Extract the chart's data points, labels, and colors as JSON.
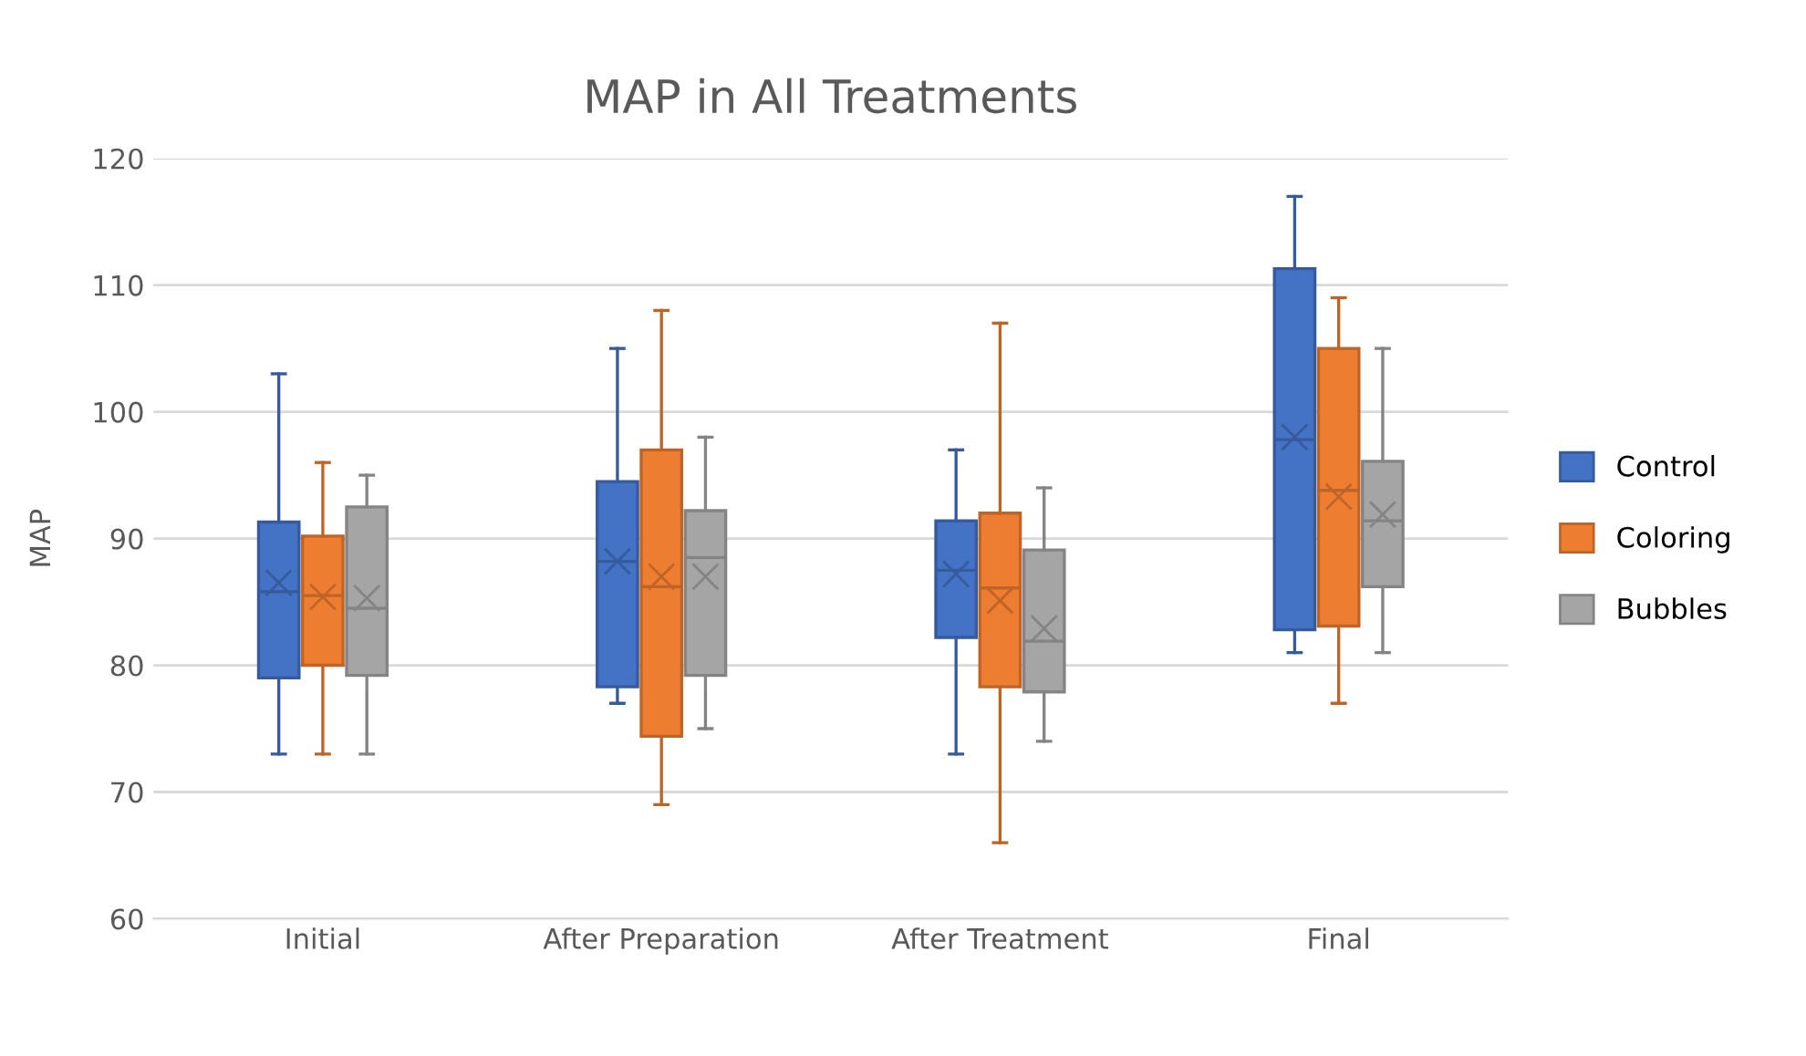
{
  "chart_data": {
    "type": "box",
    "title": "MAP in All Treatments",
    "ylabel": "MAP",
    "categories": [
      "Initial",
      "After Preparation",
      "After Treatment",
      "Final"
    ],
    "ylim": [
      60,
      120
    ],
    "yticks": [
      60,
      70,
      80,
      90,
      100,
      110,
      120
    ],
    "grid": "y",
    "legend": "right",
    "marker": "cross",
    "series": [
      {
        "name": "Control",
        "color": "#4472c4",
        "boxes": [
          {
            "low": 73,
            "q1": 79,
            "median": 85.8,
            "q3": 91.3,
            "high": 103,
            "mean": 86.5
          },
          {
            "low": 77,
            "q1": 78.3,
            "median": 88.2,
            "q3": 94.5,
            "high": 105,
            "mean": 88.2
          },
          {
            "low": 73,
            "q1": 82.2,
            "median": 87.5,
            "q3": 91.4,
            "high": 97,
            "mean": 87.2
          },
          {
            "low": 81,
            "q1": 82.8,
            "median": 97.8,
            "q3": 111.3,
            "high": 117,
            "mean": 98
          }
        ]
      },
      {
        "name": "Coloring",
        "color": "#ed7d31",
        "boxes": [
          {
            "low": 73,
            "q1": 80,
            "median": 85.5,
            "q3": 90.2,
            "high": 96,
            "mean": 85.4
          },
          {
            "low": 69,
            "q1": 74.4,
            "median": 86.2,
            "q3": 97,
            "high": 108,
            "mean": 87
          },
          {
            "low": 66,
            "q1": 78.3,
            "median": 86.1,
            "q3": 92,
            "high": 107,
            "mean": 85.1
          },
          {
            "low": 77,
            "q1": 83.1,
            "median": 93.8,
            "q3": 105,
            "high": 109,
            "mean": 93.3
          }
        ]
      },
      {
        "name": "Bubbles",
        "color": "#a5a5a5",
        "boxes": [
          {
            "low": 73,
            "q1": 79.2,
            "median": 84.5,
            "q3": 92.5,
            "high": 95,
            "mean": 85.3
          },
          {
            "low": 75,
            "q1": 79.2,
            "median": 88.5,
            "q3": 92.2,
            "high": 98,
            "mean": 87
          },
          {
            "low": 74,
            "q1": 77.9,
            "median": 81.9,
            "q3": 89.1,
            "high": 94,
            "mean": 82.9
          },
          {
            "low": 81,
            "q1": 86.2,
            "median": 91.4,
            "q3": 96.1,
            "high": 105,
            "mean": 91.9
          }
        ]
      }
    ]
  }
}
